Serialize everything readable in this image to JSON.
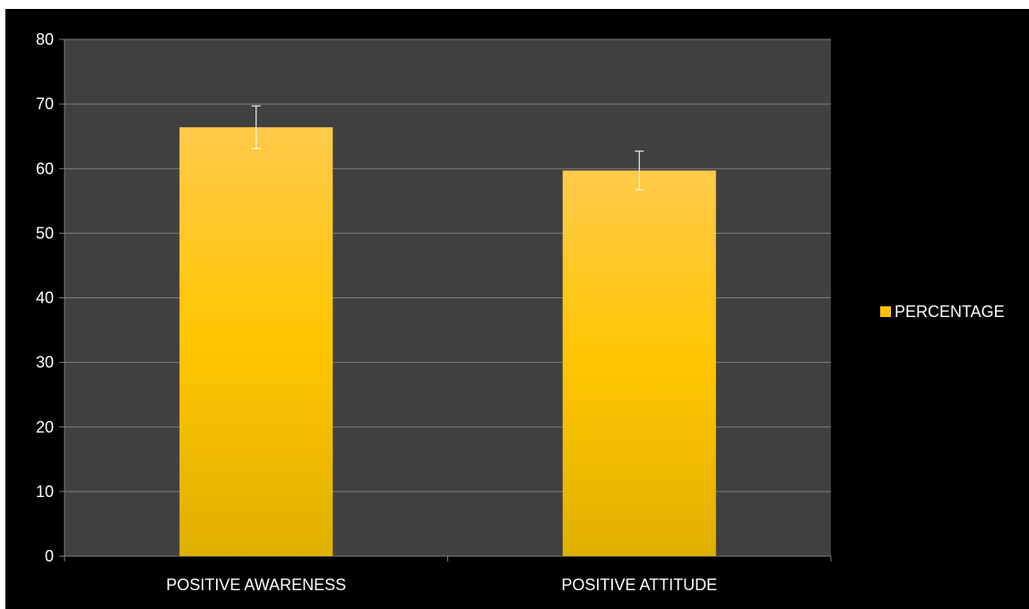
{
  "chart_data": {
    "type": "bar",
    "categories": [
      "POSITIVE AWARENESS",
      "POSITIVE ATTITUDE"
    ],
    "series": [
      {
        "name": "PERCENTAGE",
        "values": [
          66.4,
          59.7
        ],
        "error": [
          3.3,
          3.0
        ],
        "color": "#FFC000"
      }
    ],
    "ylim": [
      0,
      80
    ],
    "yticks": [
      0,
      10,
      20,
      30,
      40,
      50,
      60,
      70,
      80
    ],
    "grid": true,
    "legend": "right",
    "colors": {
      "background": "#000000",
      "plot_area": "#404040",
      "gridline": "#7f7f7f",
      "bar_top": "#FFCA4A",
      "bar_mid": "#FFC600",
      "bar_bottom": "#E0B000",
      "text": "#ffffff"
    }
  }
}
